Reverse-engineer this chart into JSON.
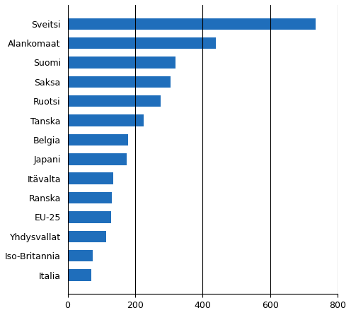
{
  "categories": [
    "Sveitsi",
    "Alankomaat",
    "Suomi",
    "Saksa",
    "Ruotsi",
    "Tanska",
    "Belgia",
    "Japani",
    "Itävalta",
    "Ranska",
    "EU-25",
    "Yhdysvallat",
    "Iso-Britannia",
    "Italia"
  ],
  "values": [
    735,
    440,
    320,
    305,
    275,
    225,
    180,
    175,
    135,
    130,
    128,
    115,
    75,
    70
  ],
  "bar_color": "#1F6EBB",
  "xlim": [
    0,
    800
  ],
  "xticks": [
    0,
    200,
    400,
    600,
    800
  ],
  "grid_x": true,
  "figsize": [
    4.96,
    4.46
  ],
  "dpi": 100
}
